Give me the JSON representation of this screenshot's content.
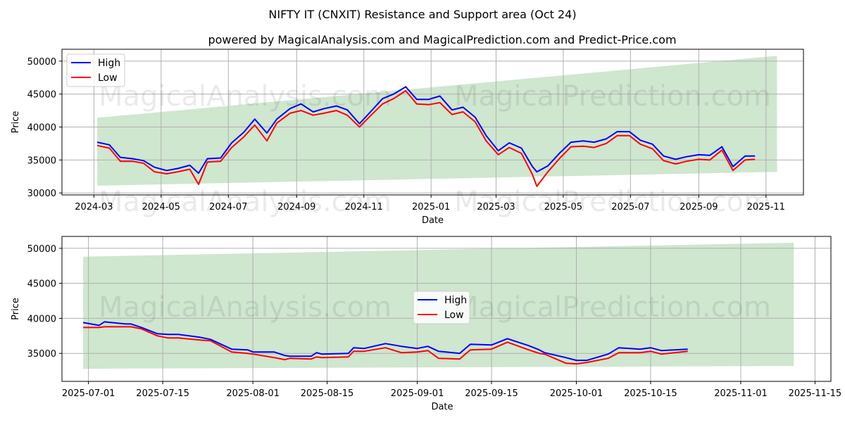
{
  "chart_data": [
    {
      "type": "line",
      "title": "NIFTY IT (CNXIT) Resistance and Support area (Oct 24)",
      "subtitle": "powered by MagicalAnalysis.com and MagicalPrediction.com and Predict-Price.com",
      "xlabel": "Date",
      "ylabel": "Price",
      "xlim": [
        "2024-02-01",
        "2025-12-05"
      ],
      "ylim": [
        29700,
        51800
      ],
      "xticks": [
        "2024-03",
        "2024-05",
        "2024-07",
        "2024-09",
        "2024-11",
        "2025-01",
        "2025-03",
        "2025-05",
        "2025-07",
        "2025-09",
        "2025-11"
      ],
      "xtick_dates": [
        "2024-03-01",
        "2024-05-01",
        "2024-07-01",
        "2024-09-01",
        "2024-11-01",
        "2025-01-01",
        "2025-03-01",
        "2025-05-01",
        "2025-07-01",
        "2025-09-01",
        "2025-11-01"
      ],
      "yticks": [
        30000,
        35000,
        40000,
        45000,
        50000
      ],
      "ytick_labels": [
        "30000",
        "35000",
        "40000",
        "45000",
        "50000"
      ],
      "band": {
        "start": "2024-03-04",
        "end": "2025-11-11",
        "upper": [
          41400,
          50800
        ],
        "lower": [
          31100,
          33200
        ],
        "color": "#cfe6cf"
      },
      "legend": {
        "position": "top-left"
      },
      "series": [
        {
          "name": "High",
          "color": "#0000ff",
          "x": [
            "2024-03-04",
            "2024-03-15",
            "2024-03-25",
            "2024-04-05",
            "2024-04-15",
            "2024-04-25",
            "2024-05-06",
            "2024-05-16",
            "2024-05-27",
            "2024-06-04",
            "2024-06-12",
            "2024-06-24",
            "2024-07-04",
            "2024-07-15",
            "2024-07-25",
            "2024-08-05",
            "2024-08-14",
            "2024-08-26",
            "2024-09-05",
            "2024-09-16",
            "2024-09-26",
            "2024-10-07",
            "2024-10-17",
            "2024-10-28",
            "2024-11-07",
            "2024-11-18",
            "2024-11-28",
            "2024-12-09",
            "2024-12-19",
            "2024-12-30",
            "2025-01-09",
            "2025-01-20",
            "2025-01-30",
            "2025-02-10",
            "2025-02-20",
            "2025-03-03",
            "2025-03-13",
            "2025-03-24",
            "2025-04-03",
            "2025-04-07",
            "2025-04-17",
            "2025-04-28",
            "2025-05-08",
            "2025-05-19",
            "2025-05-29",
            "2025-06-09",
            "2025-06-19",
            "2025-06-30",
            "2025-07-10",
            "2025-07-21",
            "2025-07-31",
            "2025-08-11",
            "2025-08-21",
            "2025-09-01",
            "2025-09-11",
            "2025-09-22",
            "2025-10-02",
            "2025-10-13",
            "2025-10-22"
          ],
          "values": [
            37700,
            37300,
            35400,
            35200,
            34900,
            33900,
            33400,
            33700,
            34200,
            33000,
            35200,
            35300,
            37600,
            39200,
            41200,
            39100,
            41200,
            42800,
            43500,
            42300,
            42800,
            43200,
            42600,
            40500,
            42300,
            44300,
            45000,
            46100,
            44200,
            44200,
            44700,
            42600,
            43000,
            41500,
            38700,
            36400,
            37600,
            36800,
            34000,
            33200,
            34100,
            36100,
            37700,
            37900,
            37700,
            38200,
            39300,
            39300,
            38000,
            37400,
            35600,
            35100,
            35500,
            35800,
            35700,
            37000,
            34000,
            35600,
            35600
          ]
        },
        {
          "name": "Low",
          "color": "#ff0000",
          "x": [
            "2024-03-04",
            "2024-03-15",
            "2024-03-25",
            "2024-04-05",
            "2024-04-15",
            "2024-04-25",
            "2024-05-06",
            "2024-05-16",
            "2024-05-27",
            "2024-06-04",
            "2024-06-12",
            "2024-06-24",
            "2024-07-04",
            "2024-07-15",
            "2024-07-25",
            "2024-08-05",
            "2024-08-14",
            "2024-08-26",
            "2024-09-05",
            "2024-09-16",
            "2024-09-26",
            "2024-10-07",
            "2024-10-17",
            "2024-10-28",
            "2024-11-07",
            "2024-11-18",
            "2024-11-28",
            "2024-12-09",
            "2024-12-19",
            "2024-12-30",
            "2025-01-09",
            "2025-01-20",
            "2025-01-30",
            "2025-02-10",
            "2025-02-20",
            "2025-03-03",
            "2025-03-13",
            "2025-03-24",
            "2025-04-03",
            "2025-04-07",
            "2025-04-17",
            "2025-04-28",
            "2025-05-08",
            "2025-05-19",
            "2025-05-29",
            "2025-06-09",
            "2025-06-19",
            "2025-06-30",
            "2025-07-10",
            "2025-07-21",
            "2025-07-31",
            "2025-08-11",
            "2025-08-21",
            "2025-09-01",
            "2025-09-11",
            "2025-09-22",
            "2025-10-02",
            "2025-10-13",
            "2025-10-22"
          ],
          "values": [
            37200,
            36800,
            34800,
            34800,
            34500,
            33200,
            32900,
            33200,
            33600,
            31300,
            34700,
            34800,
            36900,
            38500,
            40300,
            37900,
            40600,
            42100,
            42500,
            41800,
            42100,
            42500,
            41800,
            40000,
            41700,
            43500,
            44300,
            45500,
            43500,
            43400,
            43700,
            41900,
            42300,
            40800,
            37900,
            35800,
            36900,
            36000,
            32800,
            31000,
            33200,
            35300,
            37000,
            37100,
            36900,
            37500,
            38700,
            38700,
            37400,
            36700,
            34900,
            34400,
            34800,
            35100,
            35000,
            36500,
            33400,
            35000,
            35100
          ]
        }
      ]
    },
    {
      "type": "line",
      "xlabel": "Date",
      "ylabel": "Price",
      "xlim": [
        "2025-06-26",
        "2025-11-18"
      ],
      "ylim": [
        31000,
        51700
      ],
      "xticks": [
        "2025-07-01",
        "2025-07-15",
        "2025-08-01",
        "2025-08-15",
        "2025-09-01",
        "2025-09-15",
        "2025-10-01",
        "2025-10-15",
        "2025-11-01",
        "2025-11-15"
      ],
      "yticks": [
        35000,
        40000,
        45000,
        50000
      ],
      "ytick_labels": [
        "35000",
        "40000",
        "45000",
        "50000"
      ],
      "band": {
        "start": "2025-06-30",
        "end": "2025-11-11",
        "upper": [
          48800,
          50800
        ],
        "lower": [
          32800,
          33200
        ],
        "color": "#cfe6cf"
      },
      "legend": {
        "position": "center"
      },
      "series": [
        {
          "name": "High",
          "color": "#0000ff",
          "x": [
            "2025-06-30",
            "2025-07-03",
            "2025-07-04",
            "2025-07-08",
            "2025-07-09",
            "2025-07-11",
            "2025-07-14",
            "2025-07-16",
            "2025-07-18",
            "2025-07-22",
            "2025-07-24",
            "2025-07-28",
            "2025-07-31",
            "2025-08-01",
            "2025-08-05",
            "2025-08-07",
            "2025-08-08",
            "2025-08-12",
            "2025-08-13",
            "2025-08-14",
            "2025-08-19",
            "2025-08-20",
            "2025-08-22",
            "2025-08-26",
            "2025-08-29",
            "2025-09-01",
            "2025-09-03",
            "2025-09-05",
            "2025-09-09",
            "2025-09-11",
            "2025-09-15",
            "2025-09-18",
            "2025-09-22",
            "2025-09-24",
            "2025-09-25",
            "2025-09-29",
            "2025-10-01",
            "2025-10-03",
            "2025-10-07",
            "2025-10-09",
            "2025-10-13",
            "2025-10-15",
            "2025-10-17",
            "2025-10-22"
          ],
          "values": [
            39400,
            39000,
            39500,
            39200,
            39200,
            38700,
            37800,
            37700,
            37700,
            37300,
            37000,
            35600,
            35500,
            35200,
            35200,
            34700,
            34600,
            34600,
            35100,
            34900,
            35000,
            35800,
            35700,
            36400,
            36000,
            35700,
            36000,
            35300,
            35000,
            36300,
            36200,
            37100,
            36100,
            35500,
            35100,
            34400,
            34000,
            34000,
            34900,
            35800,
            35600,
            35800,
            35400,
            35600
          ]
        },
        {
          "name": "Low",
          "color": "#ff0000",
          "x": [
            "2025-06-30",
            "2025-07-03",
            "2025-07-04",
            "2025-07-08",
            "2025-07-09",
            "2025-07-11",
            "2025-07-14",
            "2025-07-16",
            "2025-07-18",
            "2025-07-22",
            "2025-07-24",
            "2025-07-28",
            "2025-07-31",
            "2025-08-01",
            "2025-08-05",
            "2025-08-07",
            "2025-08-08",
            "2025-08-12",
            "2025-08-13",
            "2025-08-14",
            "2025-08-19",
            "2025-08-20",
            "2025-08-22",
            "2025-08-26",
            "2025-08-29",
            "2025-09-01",
            "2025-09-03",
            "2025-09-05",
            "2025-09-09",
            "2025-09-11",
            "2025-09-15",
            "2025-09-18",
            "2025-09-22",
            "2025-09-24",
            "2025-09-25",
            "2025-09-29",
            "2025-10-01",
            "2025-10-03",
            "2025-10-07",
            "2025-10-09",
            "2025-10-13",
            "2025-10-15",
            "2025-10-17",
            "2025-10-22"
          ],
          "values": [
            38700,
            38700,
            38800,
            38800,
            38800,
            38500,
            37500,
            37200,
            37200,
            36900,
            36800,
            35200,
            35000,
            34900,
            34400,
            34100,
            34300,
            34200,
            34500,
            34400,
            34500,
            35300,
            35300,
            35800,
            35100,
            35200,
            35400,
            34300,
            34200,
            35500,
            35600,
            36600,
            35500,
            35000,
            34900,
            33600,
            33500,
            33700,
            34300,
            35100,
            35100,
            35300,
            34900,
            35300
          ]
        }
      ]
    }
  ],
  "watermarks": [
    "MagicalAnalysis.com",
    "MagicalPrediction.com"
  ]
}
